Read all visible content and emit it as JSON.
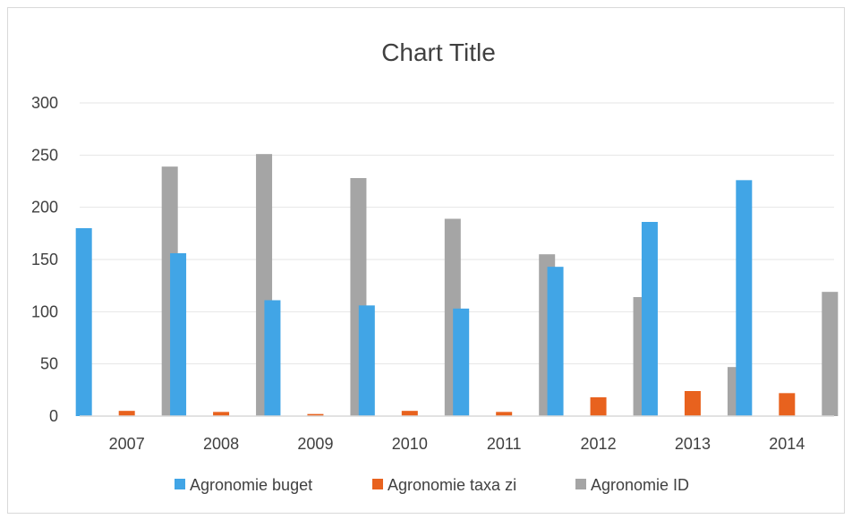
{
  "chart_data": {
    "type": "bar",
    "title": "Chart Title",
    "categories": [
      "2007",
      "2008",
      "2009",
      "2010",
      "2011",
      "2012",
      "2013",
      "2014"
    ],
    "series": [
      {
        "name": "Agronomie buget",
        "color": "#41a5e6",
        "values": [
          180,
          156,
          111,
          106,
          103,
          143,
          186,
          226
        ]
      },
      {
        "name": "Agronomie taxa zi",
        "color": "#e8621e",
        "values": [
          5,
          4,
          2,
          5,
          4,
          18,
          24,
          22
        ]
      },
      {
        "name": "Agronomie ID",
        "color": "#a5a5a5",
        "values": [
          239,
          251,
          228,
          189,
          155,
          114,
          47,
          119
        ]
      }
    ],
    "ylim": [
      0,
      300
    ],
    "yticks": [
      "0",
      "50",
      "100",
      "150",
      "200",
      "250",
      "300"
    ],
    "grid": true,
    "legend": "bottom",
    "xlabel": "",
    "ylabel": ""
  }
}
